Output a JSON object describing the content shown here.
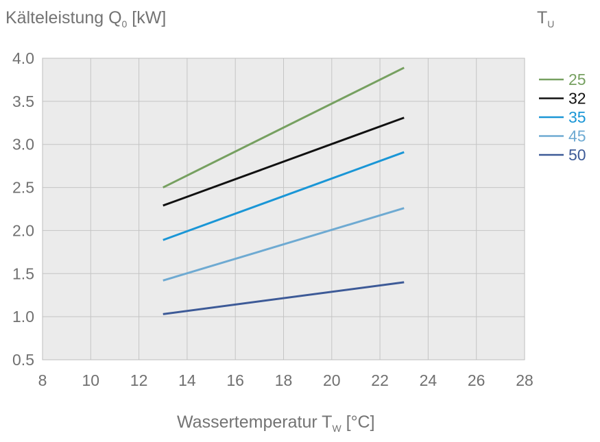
{
  "chart_data": {
    "type": "line",
    "ylabel_main": "Kälteleistung Q",
    "ylabel_sub": "0",
    "ylabel_unit": " [kW]",
    "xlabel_main": "Wassertemperatur T",
    "xlabel_sub": "W",
    "xlabel_unit": " [°C]",
    "legend_title_main": "T",
    "legend_title_sub": "U",
    "legend_placement": "right",
    "grid": true,
    "xlim": [
      8,
      28
    ],
    "ylim": [
      0.5,
      4.0
    ],
    "x_ticks": [
      8,
      10,
      12,
      14,
      16,
      18,
      20,
      22,
      24,
      26,
      28
    ],
    "y_ticks": [
      "0.5",
      "1.0",
      "1.5",
      "2.0",
      "2.5",
      "3.0",
      "3.5",
      "4.0"
    ],
    "series": [
      {
        "name": "25",
        "color": "#76a060",
        "x": [
          13,
          23
        ],
        "y": [
          2.5,
          3.89
        ]
      },
      {
        "name": "32",
        "color": "#111111",
        "x": [
          13,
          23
        ],
        "y": [
          2.29,
          3.31
        ]
      },
      {
        "name": "35",
        "color": "#1a96d6",
        "x": [
          13,
          23
        ],
        "y": [
          1.89,
          2.91
        ]
      },
      {
        "name": "45",
        "color": "#6eaad2",
        "x": [
          13,
          23
        ],
        "y": [
          1.42,
          2.26
        ]
      },
      {
        "name": "50",
        "color": "#3d5a97",
        "x": [
          13,
          23
        ],
        "y": [
          1.03,
          1.4
        ]
      }
    ]
  }
}
